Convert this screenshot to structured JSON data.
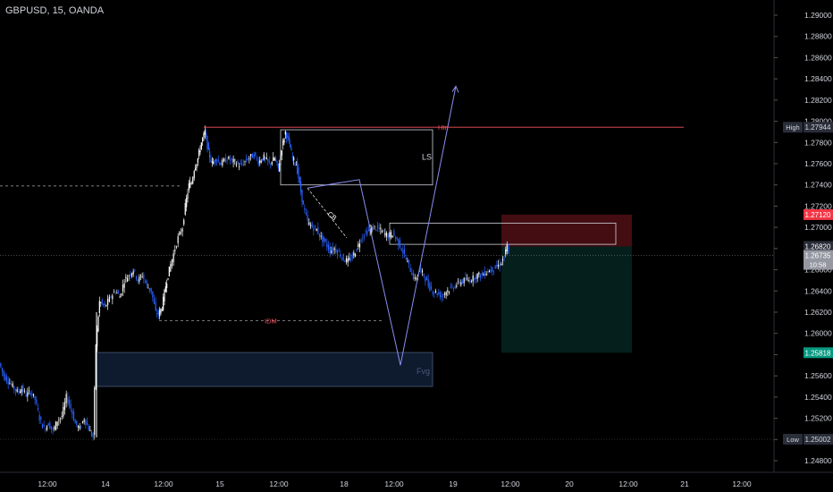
{
  "header": {
    "title": "GBPUSD, 15, OANDA"
  },
  "colors": {
    "background": "#000000",
    "candle_up": "#ffffff",
    "candle_down": "#2962ff",
    "price_badge_bg": "#9598a1",
    "high_low_badge_bg": "#2a2e39",
    "red_badge_bg": "#f23645",
    "green_badge_bg": "#089981",
    "stop_zone": "#4a0e14",
    "target_zone": "#05211d",
    "fvg_zone": "#0e1a2e",
    "zone_border": "#cfd2da",
    "accent_line": "#f7525f",
    "projection_line": "#8b8ff0"
  },
  "price_axis": {
    "ticks": [
      "1.29000",
      "1.28800",
      "1.28600",
      "1.28400",
      "1.28200",
      "1.28000",
      "1.27800",
      "1.27600",
      "1.27400",
      "1.27200",
      "1.27000",
      "1.26800",
      "1.26600",
      "1.26400",
      "1.26200",
      "1.26000",
      "1.25800",
      "1.25600",
      "1.25400",
      "1.25200",
      "1.25000",
      "1.24800"
    ]
  },
  "badges": {
    "high": {
      "label": "High",
      "value": "1.27944"
    },
    "stop": {
      "value": "1.27120"
    },
    "entry": {
      "value": "1.26820"
    },
    "current": {
      "value": "1.26735",
      "countdown": "10:58"
    },
    "target": {
      "value": "1.25818"
    },
    "low": {
      "label": "Low",
      "value": "1.25002"
    }
  },
  "annotations": {
    "htn": "Htn",
    "ls": "LS",
    "idm": "IDM",
    "cb": "CB",
    "fvg": "Fvg"
  },
  "chart_data": {
    "type": "candlestick",
    "symbol": "GBPUSD",
    "timeframe": "15",
    "source": "OANDA",
    "ylim": [
      1.2475,
      1.2915
    ],
    "x_tick_labels": [
      "12:00",
      "14",
      "12:00",
      "15",
      "12:00",
      "18",
      "12:00",
      "19",
      "12:00",
      "20",
      "12:00",
      "21",
      "12:00"
    ],
    "price_path": [
      [
        0,
        1.2572
      ],
      [
        5,
        1.256
      ],
      [
        10,
        1.2555
      ],
      [
        15,
        1.255
      ],
      [
        20,
        1.2545
      ],
      [
        25,
        1.2548
      ],
      [
        30,
        1.2542
      ],
      [
        35,
        1.2545
      ],
      [
        40,
        1.2538
      ],
      [
        45,
        1.252
      ],
      [
        50,
        1.251
      ],
      [
        55,
        1.2515
      ],
      [
        60,
        1.2508
      ],
      [
        65,
        1.2518
      ],
      [
        70,
        1.2522
      ],
      [
        75,
        1.254
      ],
      [
        80,
        1.253
      ],
      [
        85,
        1.2515
      ],
      [
        90,
        1.251
      ],
      [
        95,
        1.252
      ],
      [
        100,
        1.251
      ],
      [
        105,
        1.2502
      ],
      [
        108,
        1.259
      ],
      [
        112,
        1.263
      ],
      [
        118,
        1.2625
      ],
      [
        125,
        1.2635
      ],
      [
        130,
        1.264
      ],
      [
        135,
        1.2635
      ],
      [
        140,
        1.265
      ],
      [
        145,
        1.2655
      ],
      [
        150,
        1.266
      ],
      [
        155,
        1.265
      ],
      [
        160,
        1.2655
      ],
      [
        165,
        1.2645
      ],
      [
        170,
        1.264
      ],
      [
        175,
        1.262
      ],
      [
        178,
        1.2618
      ],
      [
        182,
        1.2625
      ],
      [
        186,
        1.2645
      ],
      [
        190,
        1.266
      ],
      [
        195,
        1.2675
      ],
      [
        200,
        1.269
      ],
      [
        205,
        1.27
      ],
      [
        208,
        1.272
      ],
      [
        212,
        1.274
      ],
      [
        215,
        1.2742
      ],
      [
        218,
        1.2755
      ],
      [
        222,
        1.2765
      ],
      [
        226,
        1.278
      ],
      [
        230,
        1.279
      ],
      [
        234,
        1.277
      ],
      [
        238,
        1.276
      ],
      [
        242,
        1.2765
      ],
      [
        248,
        1.276
      ],
      [
        255,
        1.2765
      ],
      [
        262,
        1.2762
      ],
      [
        270,
        1.2758
      ],
      [
        278,
        1.2765
      ],
      [
        285,
        1.2768
      ],
      [
        290,
        1.2762
      ],
      [
        296,
        1.2766
      ],
      [
        302,
        1.276
      ],
      [
        308,
        1.2765
      ],
      [
        312,
        1.2755
      ],
      [
        316,
        1.2775
      ],
      [
        320,
        1.279
      ],
      [
        324,
        1.278
      ],
      [
        328,
        1.2765
      ],
      [
        332,
        1.276
      ],
      [
        336,
        1.274
      ],
      [
        340,
        1.272
      ],
      [
        345,
        1.2705
      ],
      [
        350,
        1.27
      ],
      [
        355,
        1.2698
      ],
      [
        360,
        1.269
      ],
      [
        365,
        1.2685
      ],
      [
        370,
        1.2678
      ],
      [
        375,
        1.268
      ],
      [
        380,
        1.2676
      ],
      [
        385,
        1.267
      ],
      [
        390,
        1.2668
      ],
      [
        395,
        1.2672
      ],
      [
        400,
        1.268
      ],
      [
        405,
        1.269
      ],
      [
        410,
        1.2695
      ],
      [
        415,
        1.2698
      ],
      [
        420,
        1.27
      ],
      [
        425,
        1.2698
      ],
      [
        430,
        1.2695
      ],
      [
        435,
        1.2692
      ],
      [
        440,
        1.2694
      ],
      [
        445,
        1.2688
      ],
      [
        450,
        1.268
      ],
      [
        455,
        1.267
      ],
      [
        460,
        1.266
      ],
      [
        465,
        1.265
      ],
      [
        470,
        1.266
      ],
      [
        475,
        1.2655
      ],
      [
        480,
        1.2645
      ],
      [
        485,
        1.264
      ],
      [
        490,
        1.2638
      ],
      [
        495,
        1.2635
      ],
      [
        500,
        1.264
      ],
      [
        505,
        1.2642
      ],
      [
        510,
        1.2645
      ],
      [
        515,
        1.2648
      ],
      [
        520,
        1.265
      ],
      [
        525,
        1.265
      ],
      [
        530,
        1.2652
      ],
      [
        535,
        1.2655
      ],
      [
        540,
        1.2655
      ],
      [
        545,
        1.2658
      ],
      [
        550,
        1.266
      ],
      [
        555,
        1.2662
      ],
      [
        560,
        1.2665
      ],
      [
        565,
        1.2672
      ],
      [
        568,
        1.2682
      ],
      [
        570,
        1.26735
      ]
    ],
    "levels": {
      "high": 1.27944,
      "stop": 1.2712,
      "entry": 1.2682,
      "current": 1.26735,
      "target": 1.25818,
      "low": 1.25002,
      "idm": 1.2612,
      "prior_dashed": 1.2739
    },
    "zones": {
      "ls": {
        "price_top": 1.2792,
        "price_bottom": 1.274
      },
      "supply": {
        "price_top": 1.2704,
        "price_bottom": 1.2684
      },
      "fvg": {
        "price_top": 1.2582,
        "price_bottom": 1.255
      },
      "stop_zone": {
        "price_top": 1.2712,
        "price_bottom": 1.2682
      },
      "target_zone": {
        "price_top": 1.2682,
        "price_bottom": 1.25818
      }
    },
    "projection_path": [
      [
        344,
        1.2737
      ],
      [
        402,
        1.2745
      ],
      [
        448,
        1.257
      ],
      [
        510,
        1.2833
      ]
    ]
  }
}
